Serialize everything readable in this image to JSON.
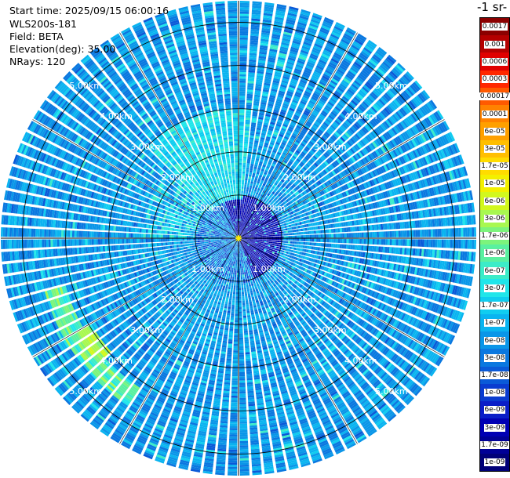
{
  "header": {
    "start_time": "Start time: 2025/09/15 06:00:16",
    "instrument": "WLS200s-181",
    "field": "Field: BETA",
    "elevation": "Elevation(deg): 35.00",
    "nrays": "NRays: 120"
  },
  "colorbar": {
    "title": "-1 sr-",
    "levels": [
      {
        "label": "0.0017",
        "color": "#8b0000"
      },
      {
        "label": "0.001",
        "color": "#b40000"
      },
      {
        "label": "0.0006",
        "color": "#e00000"
      },
      {
        "label": "0.0003",
        "color": "#ff2800"
      },
      {
        "label": "0.00017",
        "color": "#ff5a00"
      },
      {
        "label": "0.0001",
        "color": "#ff8200"
      },
      {
        "label": "6e-05",
        "color": "#ffa000"
      },
      {
        "label": "3e-05",
        "color": "#ffbf00"
      },
      {
        "label": "1.7e-05",
        "color": "#ffdc00"
      },
      {
        "label": "1e-05",
        "color": "#f3f000"
      },
      {
        "label": "6e-06",
        "color": "#d2f81e"
      },
      {
        "label": "3e-06",
        "color": "#a8f850"
      },
      {
        "label": "1.7e-06",
        "color": "#7cf47c"
      },
      {
        "label": "1e-06",
        "color": "#5af0a0"
      },
      {
        "label": "6e-07",
        "color": "#3cecc8"
      },
      {
        "label": "3e-07",
        "color": "#20e6ea"
      },
      {
        "label": "1.7e-07",
        "color": "#10cdf0"
      },
      {
        "label": "1e-07",
        "color": "#0ab4f0"
      },
      {
        "label": "6e-08",
        "color": "#0a96e8"
      },
      {
        "label": "3e-08",
        "color": "#0a78e0"
      },
      {
        "label": "1.7e-08",
        "color": "#0a5ad8"
      },
      {
        "label": "1e-08",
        "color": "#0a3cd0"
      },
      {
        "label": "6e-09",
        "color": "#0a1ec8"
      },
      {
        "label": "3e-09",
        "color": "#0000b4"
      },
      {
        "label": "1.7e-09",
        "color": "#000096"
      },
      {
        "label": "1e-09",
        "color": "#000078"
      }
    ]
  },
  "chart_data": {
    "type": "ppi",
    "field": "BETA",
    "elevation_deg": 35.0,
    "n_rays": 120,
    "max_range_km": 5.5,
    "range_rings_km": [
      1.0,
      2.0,
      3.0,
      4.0,
      5.0
    ],
    "ring_labels": [
      "1.00km",
      "2.00km",
      "3.00km",
      "4.00km",
      "5.00km"
    ],
    "radial_lines_deg": [
      0,
      30,
      60,
      90,
      120,
      150,
      180,
      210,
      240,
      270,
      300,
      330
    ],
    "dominant_value": "6e-08",
    "features": [
      {
        "desc": "dense low values near center",
        "value": "3e-09",
        "range_km": [
          0.0,
          1.0
        ]
      },
      {
        "desc": "higher values north-northwest",
        "value": "3e-07",
        "azimuth_deg": [
          320,
          360
        ],
        "range_km": [
          1.0,
          3.0
        ]
      },
      {
        "desc": "arc of high values southwest",
        "value": "3e-06",
        "azimuth_deg": [
          215,
          250
        ],
        "range_km": [
          4.2,
          4.6
        ]
      }
    ]
  },
  "colors": {
    "background": "#ffffff",
    "ring_color": "#000000",
    "label_color": "#ffffff",
    "ray_gap_color": "#ffffff"
  }
}
